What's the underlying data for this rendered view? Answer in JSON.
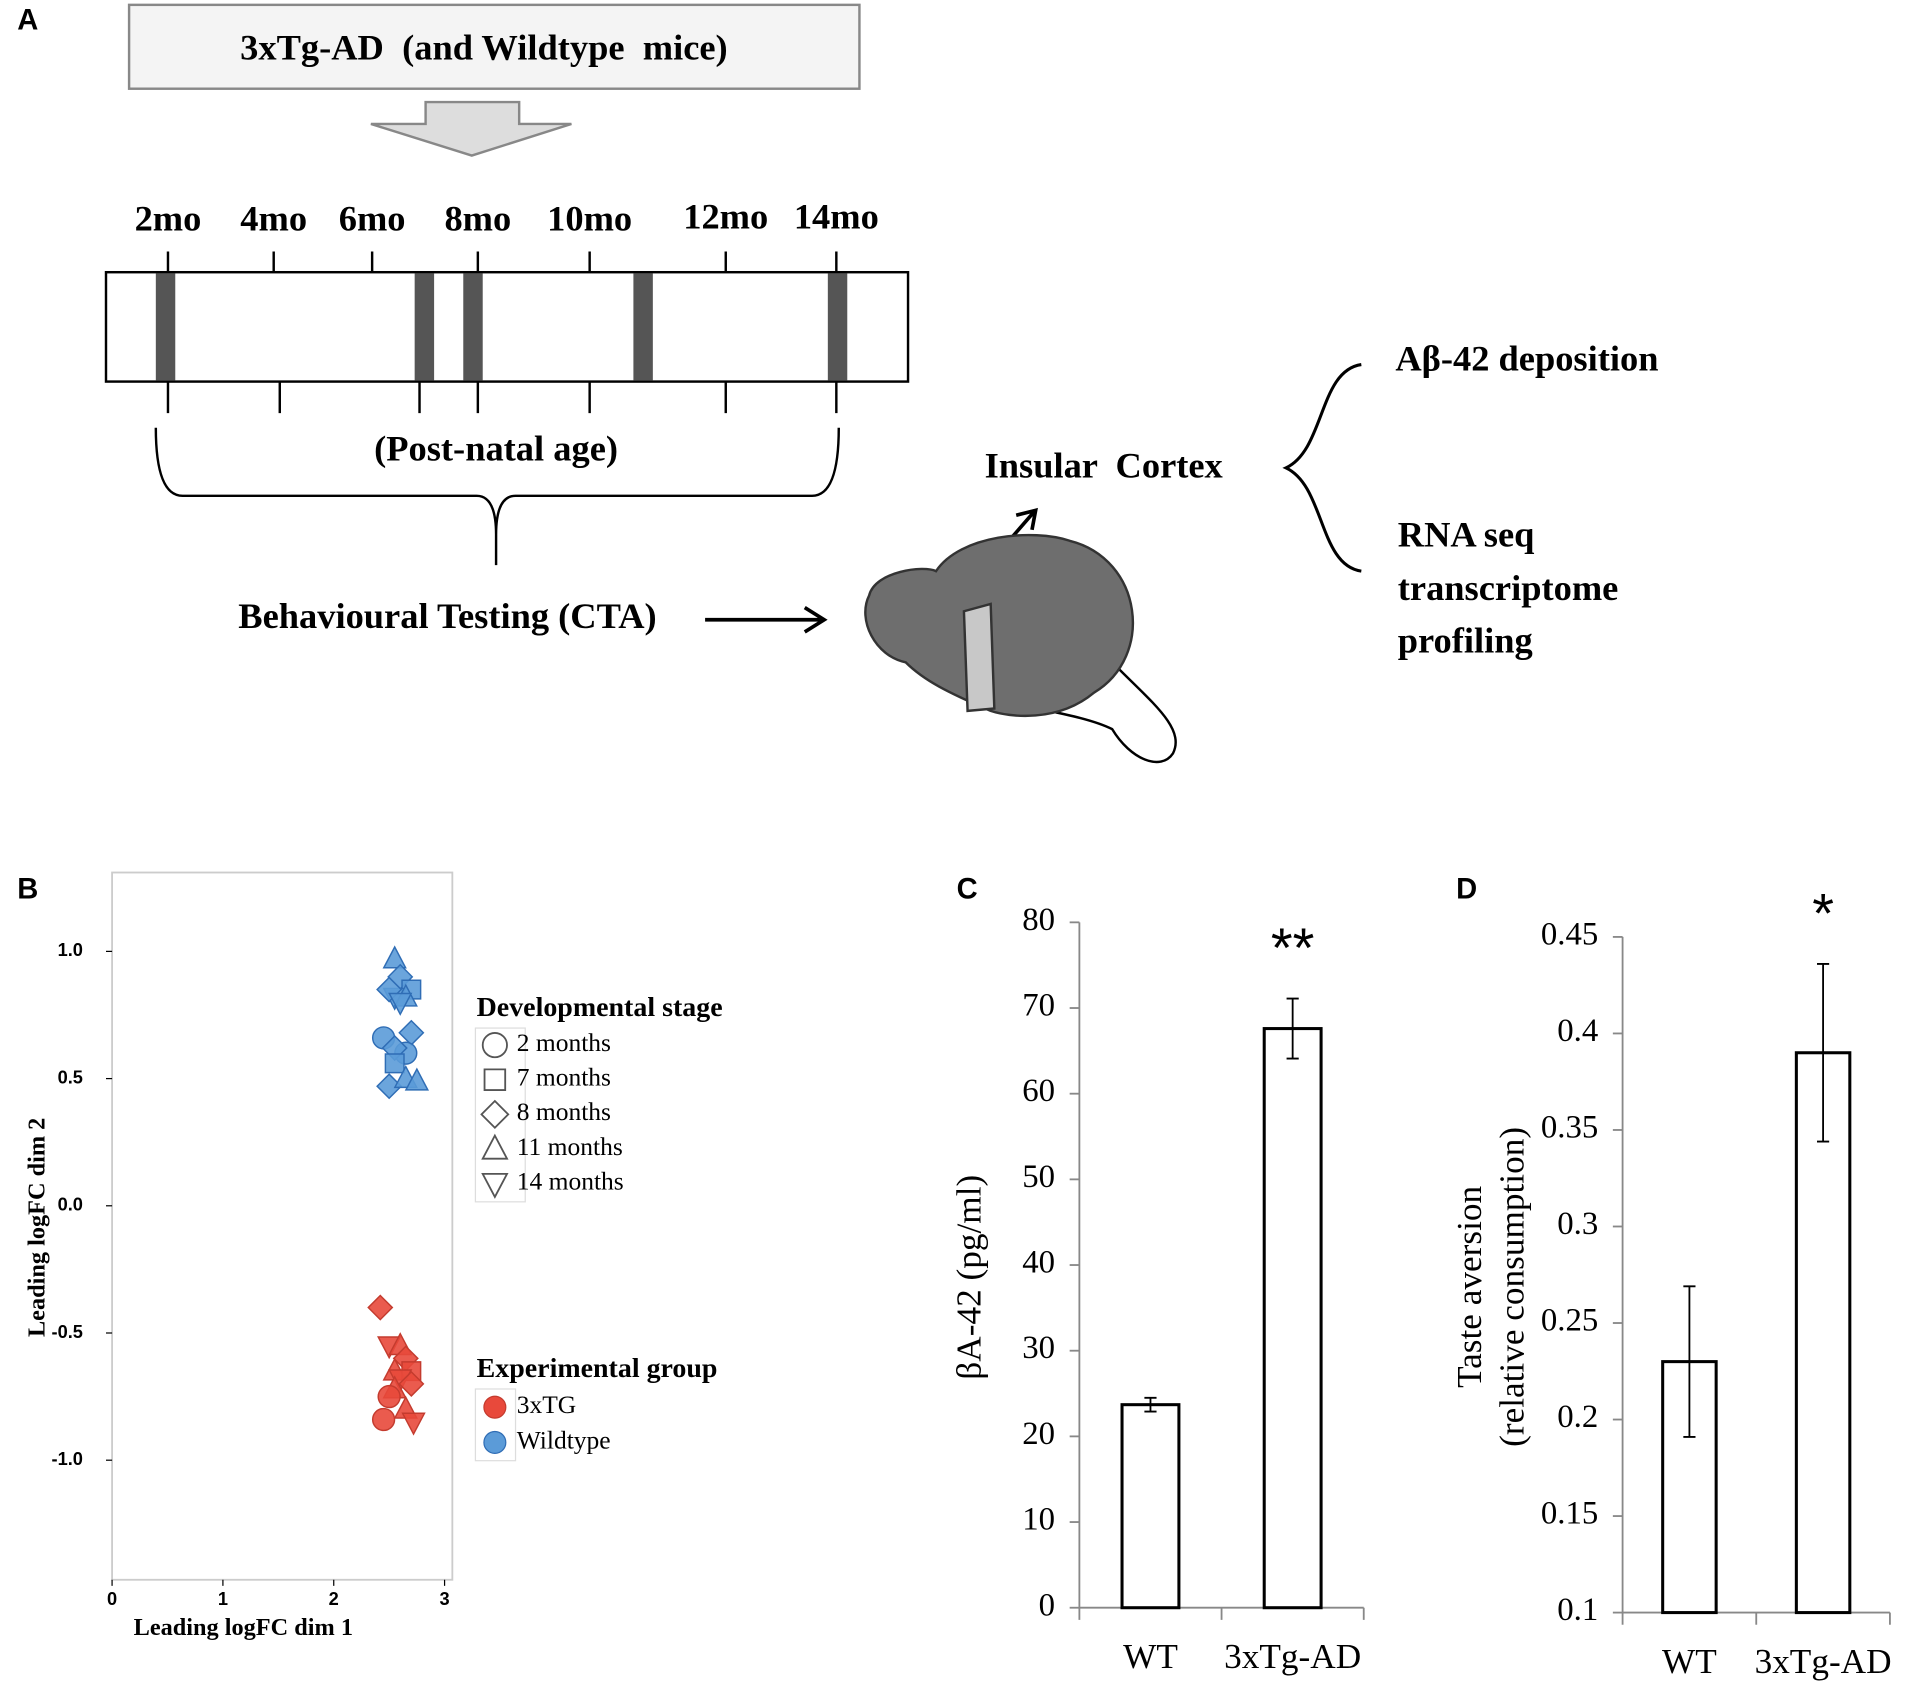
{
  "panel_a": {
    "label": "A",
    "top_box": "3xTg-AD  (and Wildtype  mice)",
    "timeline_labels": [
      "2mo",
      "4mo",
      "6mo",
      "8mo",
      "10mo",
      "12mo",
      "14mo"
    ],
    "age_caption": "(Post-natal age)",
    "testing": "Behavioural Testing (CTA)",
    "region": "Insular  Cortex",
    "outcome_1": "Aβ-42 deposition",
    "outcome_2": [
      "RNA seq",
      "transcriptome",
      "profiling"
    ]
  },
  "chart_data": [
    {
      "type": "scatter",
      "panel_label": "B",
      "xlabel": "Leading logFC dim 1",
      "ylabel": "Leading logFC dim 2",
      "xlim": [
        0,
        3.07
      ],
      "ylim": [
        -1.47,
        1.31
      ],
      "xticks": [
        0,
        1,
        2,
        3
      ],
      "yticks": [
        {
          "value": 1,
          "label": "1.0"
        },
        0.5,
        {
          "value": 0,
          "label": "0.0"
        },
        -0.5,
        {
          "value": -1,
          "label": "-1.0"
        }
      ],
      "series": [
        {
          "name": "3xTG",
          "color": "#e8493b",
          "edge": "#c43b2e",
          "markers": [
            "diamond",
            "triangle-down",
            "triangle-up",
            "diamond",
            "triangle-up",
            "square",
            "triangle-down",
            "diamond",
            "triangle-up",
            "circle",
            "triangle-up",
            "circle",
            "triangle-down"
          ],
          "x": [
            2.42,
            2.5,
            2.6,
            2.65,
            2.55,
            2.7,
            2.6,
            2.7,
            2.55,
            2.5,
            2.65,
            2.45,
            2.72
          ],
          "values": [
            -0.4,
            -0.55,
            -0.55,
            -0.6,
            -0.65,
            -0.65,
            -0.68,
            -0.7,
            -0.72,
            -0.75,
            -0.8,
            -0.84,
            -0.85
          ]
        },
        {
          "name": "Wildtype",
          "color": "#5b9bd8",
          "edge": "#2f6db5",
          "markers": [
            "triangle-up",
            "diamond",
            "square",
            "triangle-down",
            "triangle-up",
            "diamond",
            "triangle-down",
            "circle",
            "diamond",
            "circle",
            "diamond",
            "square",
            "diamond",
            "triangle-up",
            "triangle-up"
          ],
          "x": [
            2.55,
            2.6,
            2.7,
            2.55,
            2.65,
            2.5,
            2.6,
            2.45,
            2.7,
            2.65,
            2.55,
            2.55,
            2.5,
            2.65,
            2.75
          ],
          "values": [
            0.97,
            0.9,
            0.85,
            0.82,
            0.82,
            0.85,
            0.8,
            0.66,
            0.68,
            0.6,
            0.62,
            0.56,
            0.47,
            0.5,
            0.49
          ]
        }
      ],
      "shape_legend": {
        "title": "Developmental stage",
        "entries": [
          {
            "label": "2 months",
            "marker": "circle"
          },
          {
            "label": "7 months",
            "marker": "square"
          },
          {
            "label": "8 months",
            "marker": "diamond"
          },
          {
            "label": "11 months",
            "marker": "triangle-up"
          },
          {
            "label": "14 months",
            "marker": "triangle-down"
          }
        ]
      },
      "color_legend_title": "Experimental group",
      "color_legend_marker": "circle"
    },
    {
      "type": "bar",
      "panel_label": "C",
      "ylabel": "βA-42 (pg/ml)",
      "categories": [
        "WT",
        "3xTg-AD"
      ],
      "values": [
        23.7,
        67.6
      ],
      "errors": [
        0.8,
        3.5
      ],
      "significance_labels": [
        null,
        "**"
      ],
      "ylim": [
        0,
        80
      ],
      "yticks": [
        0,
        10,
        20,
        30,
        40,
        50,
        60,
        70,
        80
      ],
      "color": "#ffffff"
    },
    {
      "type": "bar",
      "panel_label": "D",
      "ylabel": [
        "Taste aversion",
        "(relative consumption)"
      ],
      "categories": [
        "WT",
        "3xTg-AD"
      ],
      "values": [
        0.23,
        0.39
      ],
      "errors": [
        0.039,
        0.046
      ],
      "significance_labels": [
        null,
        "*"
      ],
      "ylim": [
        0.1,
        0.45
      ],
      "yticks": [
        0.1,
        0.15,
        0.2,
        0.25,
        0.3,
        0.35,
        0.4,
        0.45
      ],
      "color": "#ffffff"
    }
  ]
}
